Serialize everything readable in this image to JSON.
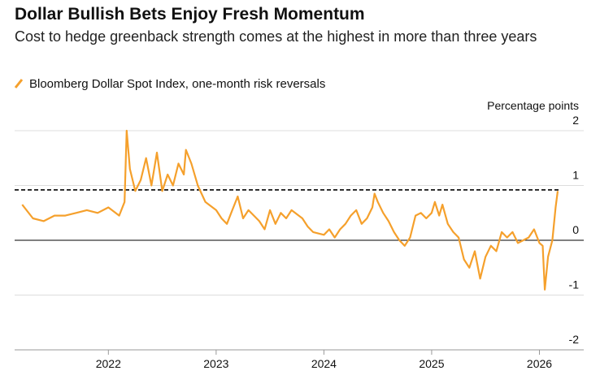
{
  "chart_data": {
    "type": "line",
    "title": "Dollar Bullish Bets Enjoy Fresh Momentum",
    "subtitle": "Cost to hedge greenback strength comes at the highest in more than three years",
    "y_label": "Percentage points",
    "x": [
      2021.2,
      2021.3,
      2021.4,
      2021.5,
      2021.6,
      2021.7,
      2021.8,
      2021.9,
      2022.0,
      2022.1,
      2022.15,
      2022.17,
      2022.2,
      2022.25,
      2022.3,
      2022.35,
      2022.4,
      2022.45,
      2022.5,
      2022.55,
      2022.6,
      2022.65,
      2022.7,
      2022.72,
      2022.77,
      2022.83,
      2022.9,
      2023.0,
      2023.05,
      2023.1,
      2023.15,
      2023.2,
      2023.25,
      2023.3,
      2023.4,
      2023.45,
      2023.5,
      2023.55,
      2023.6,
      2023.65,
      2023.7,
      2023.8,
      2023.85,
      2023.9,
      2024.0,
      2024.05,
      2024.1,
      2024.15,
      2024.2,
      2024.25,
      2024.3,
      2024.35,
      2024.4,
      2024.45,
      2024.47,
      2024.5,
      2024.55,
      2024.6,
      2024.65,
      2024.7,
      2024.75,
      2024.8,
      2024.85,
      2024.9,
      2024.95,
      2025.0,
      2025.03,
      2025.07,
      2025.1,
      2025.15,
      2025.2,
      2025.25,
      2025.3,
      2025.35,
      2025.4,
      2025.45,
      2025.5,
      2025.55,
      2025.6,
      2025.65,
      2025.7,
      2025.75,
      2025.8,
      2025.85,
      2025.9,
      2025.95,
      2026.0,
      2026.03,
      2026.05,
      2026.08,
      2026.12,
      2026.15,
      2026.17
    ],
    "series": [
      {
        "name": "Bloomberg Dollar Spot Index, one-month risk reversals",
        "color": "#f5a02c",
        "values": [
          0.65,
          0.4,
          0.35,
          0.45,
          0.45,
          0.5,
          0.55,
          0.5,
          0.6,
          0.45,
          0.7,
          2.0,
          1.3,
          0.9,
          1.1,
          1.5,
          1.0,
          1.6,
          0.9,
          1.2,
          1.0,
          1.4,
          1.2,
          1.65,
          1.4,
          1.0,
          0.7,
          0.55,
          0.4,
          0.3,
          0.55,
          0.8,
          0.4,
          0.55,
          0.35,
          0.2,
          0.55,
          0.3,
          0.5,
          0.4,
          0.55,
          0.4,
          0.25,
          0.15,
          0.1,
          0.2,
          0.05,
          0.2,
          0.3,
          0.45,
          0.55,
          0.3,
          0.4,
          0.6,
          0.85,
          0.7,
          0.5,
          0.35,
          0.15,
          0.0,
          -0.1,
          0.05,
          0.45,
          0.5,
          0.4,
          0.5,
          0.7,
          0.45,
          0.65,
          0.3,
          0.15,
          0.05,
          -0.35,
          -0.5,
          -0.2,
          -0.7,
          -0.3,
          -0.1,
          -0.2,
          0.15,
          0.05,
          0.15,
          -0.05,
          0.0,
          0.05,
          0.2,
          -0.05,
          -0.1,
          -0.9,
          -0.3,
          0.0,
          0.6,
          0.9
        ]
      }
    ],
    "reference_line": 0.92,
    "xlim": [
      2021.13,
      2026.2
    ],
    "xticks": [
      2022,
      2023,
      2024,
      2025,
      2026
    ],
    "ylim": [
      -2,
      2
    ],
    "yticks": [
      2,
      1,
      0,
      -1,
      -2
    ]
  }
}
